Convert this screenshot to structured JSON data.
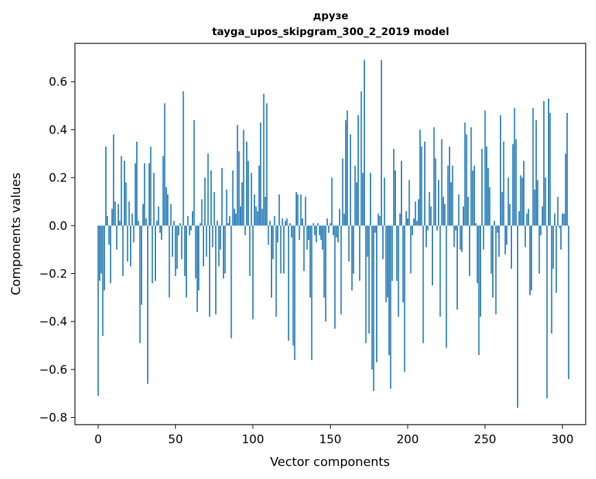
{
  "chart_data": {
    "type": "bar",
    "title": "друзе",
    "subtitle": "tayga_upos_skipgram_300_2_2019 model",
    "xlabel": "Vector components",
    "ylabel": "Components values",
    "xlim": [
      -15,
      315
    ],
    "ylim": [
      -0.83,
      0.76
    ],
    "xticks": [
      0,
      50,
      100,
      150,
      200,
      250,
      300
    ],
    "xtick_labels": [
      "0",
      "50",
      "100",
      "150",
      "200",
      "250",
      "300"
    ],
    "yticks": [
      -0.8,
      -0.6,
      -0.4,
      -0.2,
      0.0,
      0.2,
      0.4,
      0.6
    ],
    "ytick_labels": [
      "−0.8",
      "−0.6",
      "−0.4",
      "−0.2",
      "0.0",
      "0.2",
      "0.4",
      "0.6"
    ],
    "bar_color": "#1f77b4",
    "grid": false,
    "values": [
      -0.71,
      -0.23,
      -0.2,
      -0.46,
      -0.27,
      0.33,
      0.04,
      -0.08,
      -0.24,
      0.07,
      0.38,
      0.1,
      -0.1,
      0.09,
      0.02,
      0.29,
      -0.21,
      0.27,
      0.18,
      -0.15,
      0.1,
      -0.17,
      0.05,
      -0.07,
      0.26,
      0.35,
      0.02,
      -0.49,
      -0.33,
      0.09,
      0.26,
      0.03,
      -0.66,
      0.26,
      0.33,
      -0.24,
      0.22,
      -0.23,
      0.02,
      0.08,
      -0.03,
      -0.06,
      0.29,
      0.51,
      0.16,
      0.13,
      -0.3,
      0.09,
      -0.13,
      0.02,
      -0.21,
      -0.18,
      -0.04,
      0.01,
      -0.14,
      0.56,
      -0.21,
      -0.3,
      0.04,
      -0.04,
      -0.02,
      0.06,
      0.44,
      -0.22,
      -0.36,
      -0.27,
      0.01,
      0.11,
      -0.17,
      0.2,
      -0.13,
      0.3,
      -0.38,
      0.23,
      -0.09,
      0.14,
      -0.37,
      0.02,
      -0.17,
      -0.1,
      0.24,
      -0.22,
      -0.2,
      0.15,
      0.01,
      0.04,
      -0.47,
      0.23,
      0.07,
      0.05,
      0.42,
      0.31,
      0.08,
      0.18,
      0.4,
      -0.04,
      0.35,
      0.27,
      -0.21,
      0.22,
      -0.39,
      0.13,
      0.08,
      0.06,
      0.25,
      0.43,
      0.07,
      0.55,
      0.12,
      0.51,
      -0.08,
      0.02,
      -0.3,
      -0.14,
      0.04,
      -0.38,
      -0.07,
      0.13,
      -0.2,
      0.03,
      -0.2,
      0.02,
      0.03,
      -0.48,
      0.01,
      -0.05,
      -0.5,
      -0.56,
      0.14,
      0.13,
      -0.06,
      0.13,
      0.03,
      -0.19,
      0.12,
      -0.1,
      -0.06,
      -0.3,
      -0.56,
      0.01,
      -0.04,
      -0.07,
      0.01,
      -0.04,
      -0.06,
      -0.1,
      -0.3,
      -0.4,
      0.03,
      -0.03,
      0.01,
      0.2,
      -0.04,
      -0.43,
      -0.05,
      -0.07,
      0.07,
      -0.37,
      0.28,
      0.05,
      0.44,
      0.48,
      -0.15,
      0.38,
      -0.27,
      -0.2,
      0.25,
      0.18,
      0.46,
      -0.23,
      0.56,
      0.22,
      0.69,
      -0.49,
      -0.13,
      -0.45,
      0.22,
      -0.6,
      -0.69,
      -0.03,
      -0.57,
      0.05,
      0.04,
      0.69,
      -0.14,
      0.2,
      -0.32,
      -0.3,
      -0.54,
      -0.68,
      -0.23,
      0.32,
      0.23,
      -0.23,
      -0.38,
      0.05,
      0.27,
      -0.32,
      -0.61,
      0.06,
      0.03,
      0.19,
      -0.2,
      -0.04,
      0.03,
      0.1,
      0.02,
      0.11,
      0.4,
      0.33,
      -0.49,
      0.35,
      -0.09,
      -0.02,
      0.14,
      0.08,
      -0.25,
      0.41,
      0.28,
      -0.02,
      0.19,
      -0.38,
      0.36,
      0.12,
      0.09,
      -0.51,
      0.25,
      0.33,
      0.18,
      0.25,
      -0.09,
      -0.02,
      -0.35,
      0.13,
      -0.1,
      -0.11,
      0.08,
      0.43,
      0.38,
      0.12,
      -0.21,
      0.41,
      0.23,
      0.25,
      0.01,
      -0.24,
      -0.54,
      -0.38,
      0.32,
      -0.1,
      0.48,
      0.33,
      0.24,
      0.16,
      -0.2,
      -0.3,
      0.02,
      -0.37,
      -0.03,
      -0.13,
      0.46,
      0.14,
      0.35,
      -0.12,
      -0.08,
      0.2,
      0.09,
      -0.18,
      0.34,
      0.49,
      0.36,
      -0.76,
      0.06,
      0.21,
      0.2,
      0.27,
      -0.09,
      0.05,
      0.07,
      -0.29,
      -0.27,
      0.49,
      0.15,
      0.44,
      0.19,
      -0.2,
      -0.04,
      0.08,
      0.52,
      0.2,
      -0.72,
      0.53,
      0.47,
      -0.45,
      -0.18,
      0.05,
      -0.28,
      0.12,
      -0.01,
      -0.1,
      0.05,
      0.05,
      0.3,
      0.47,
      -0.64
    ]
  }
}
